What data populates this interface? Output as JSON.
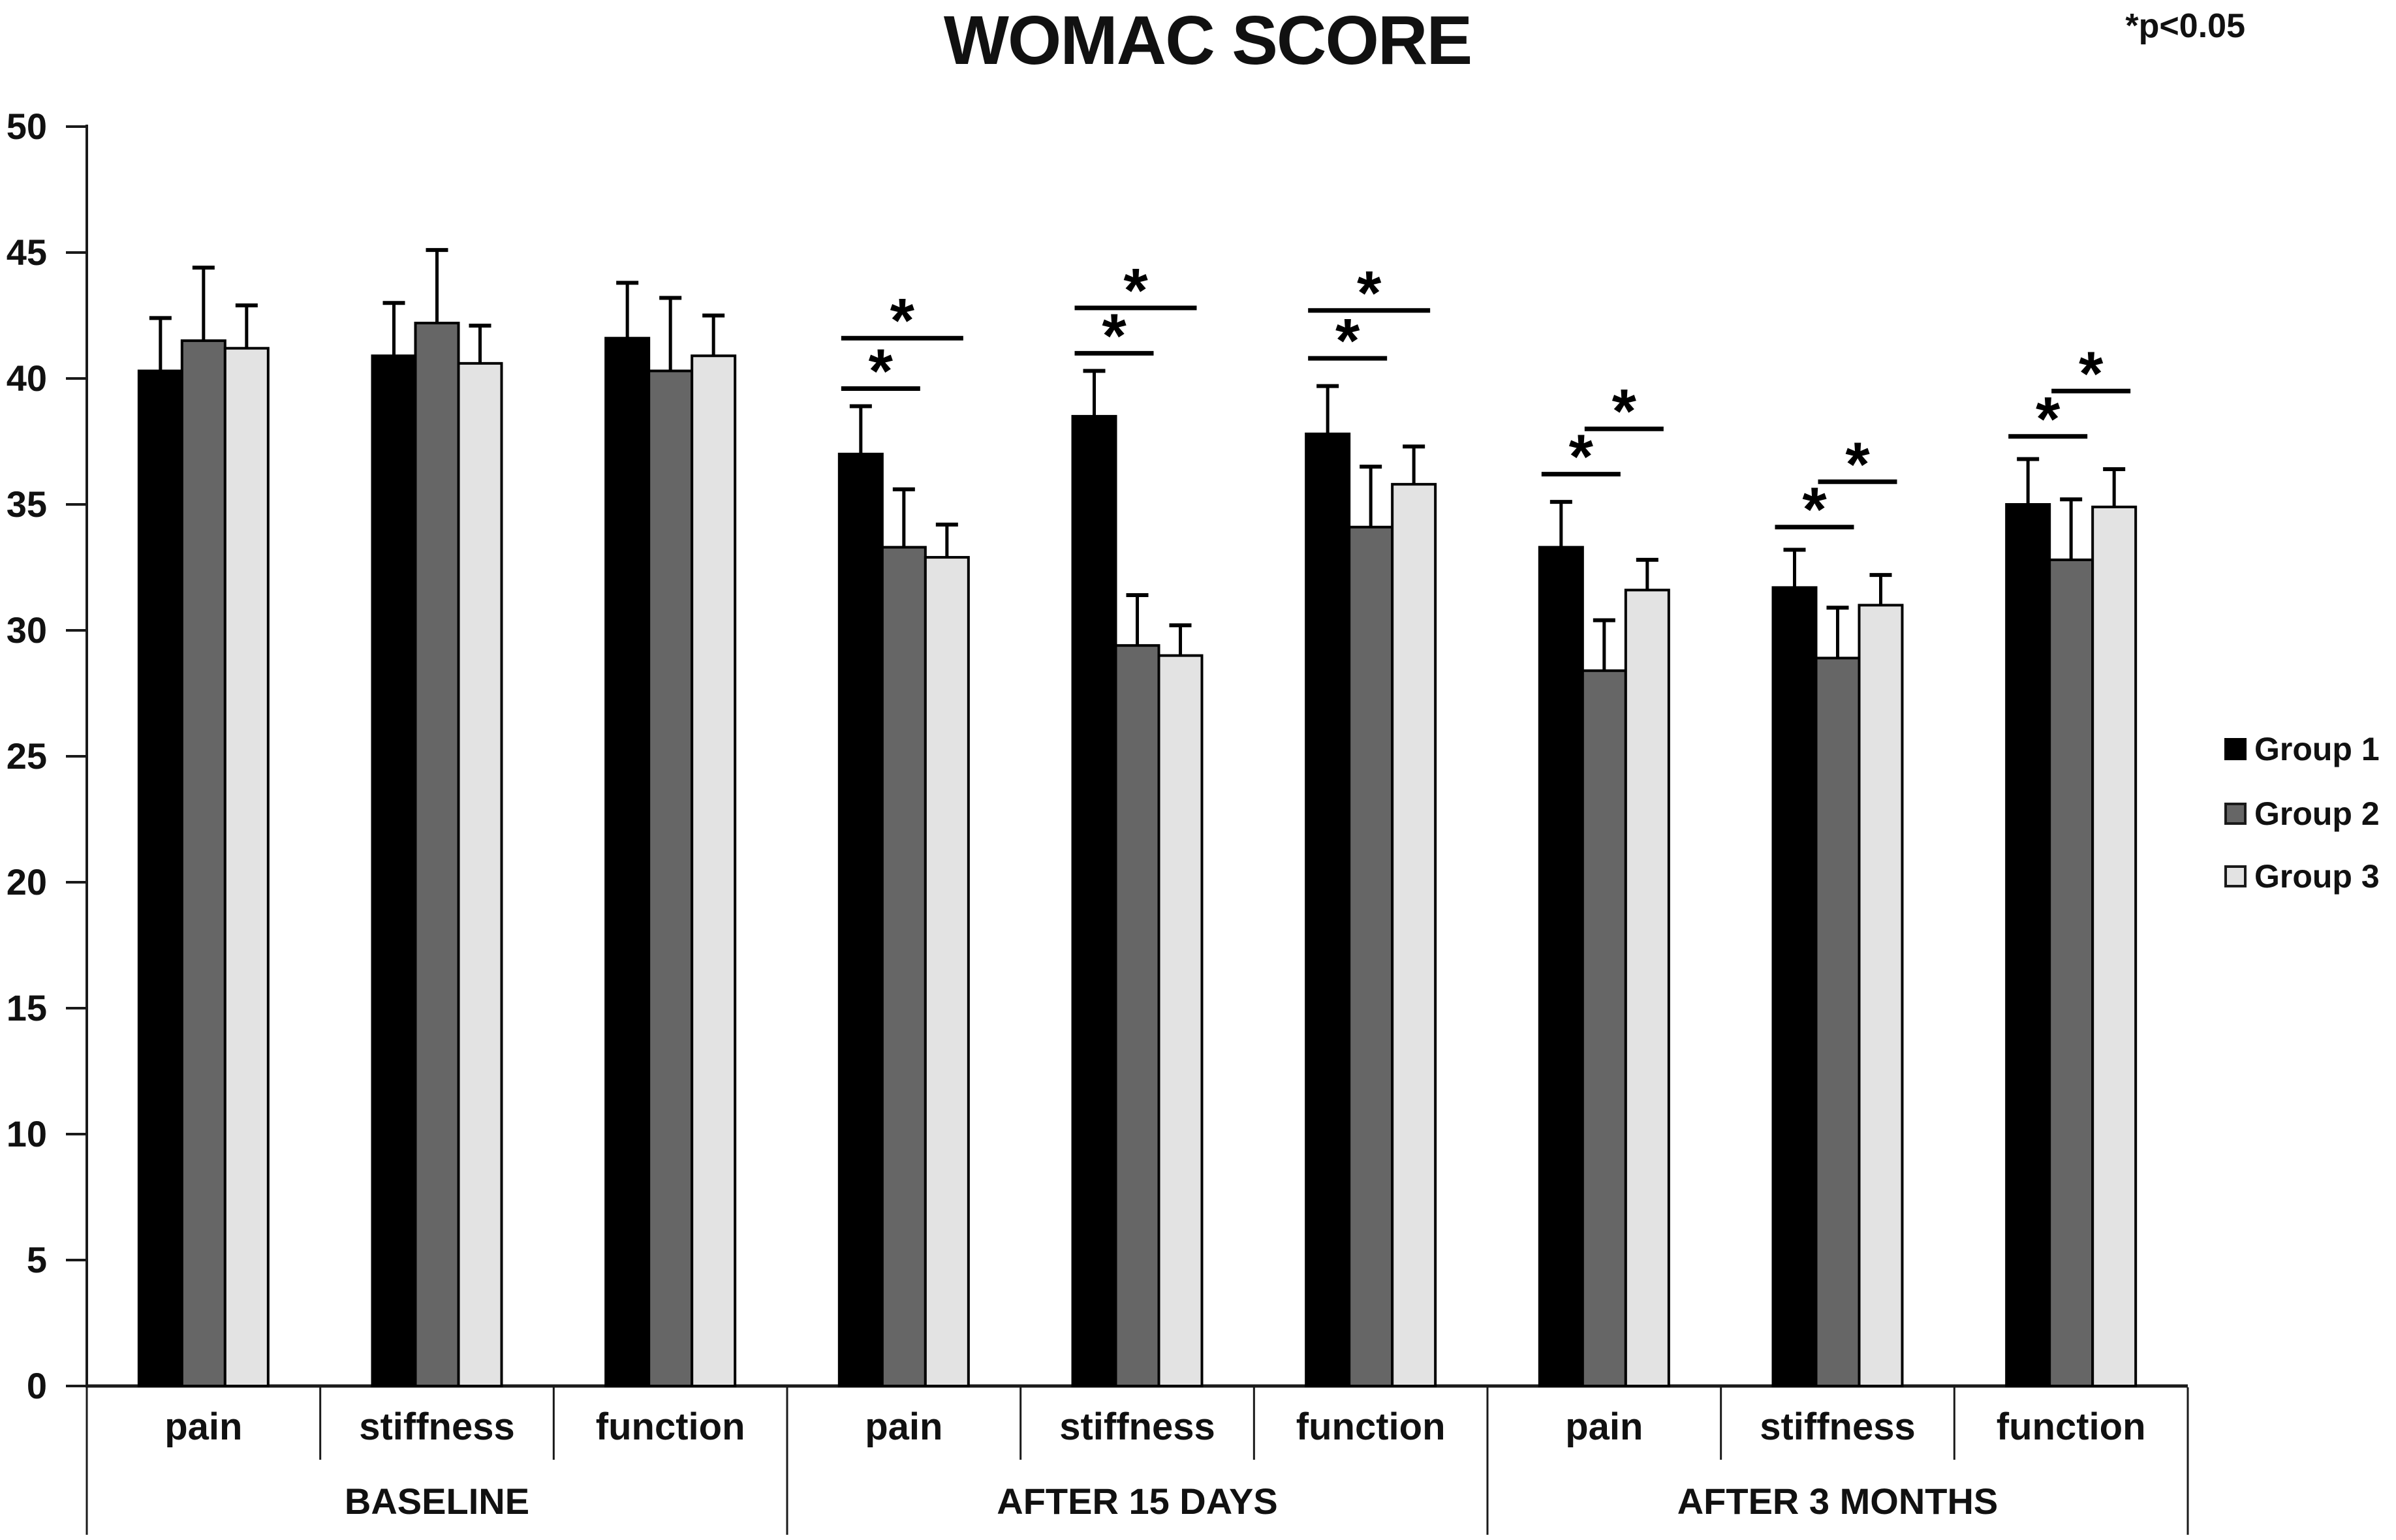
{
  "title": "WOMAC SCORE",
  "significance_note": "*p<0.05",
  "legend": [
    {
      "label": "Group 1",
      "color": "#000000",
      "border": "#000000"
    },
    {
      "label": "Group 2",
      "color": "#666666",
      "border": "#1a1a1a"
    },
    {
      "label": "Group 3",
      "color": "#e3e3e3",
      "border": "#1a1a1a"
    }
  ],
  "colors": {
    "group1": "#000000",
    "group2": "#666666",
    "group3": "#e3e3e3",
    "axis": "#1a1a1a",
    "text": "#111111"
  },
  "chart_data": {
    "type": "bar",
    "title": "WOMAC SCORE",
    "xlabel": "",
    "ylabel": "",
    "ylim": [
      0,
      50
    ],
    "y_ticks": [
      0,
      5,
      10,
      15,
      20,
      25,
      30,
      35,
      40,
      45,
      50
    ],
    "grid": false,
    "legend_position": "right",
    "groups": [
      "Group 1",
      "Group 2",
      "Group 3"
    ],
    "significance_marker": "*",
    "sections": [
      {
        "period": "BASELINE",
        "categories": [
          {
            "name": "pain",
            "values": [
              40.3,
              41.5,
              41.2
            ],
            "errors": [
              2.1,
              2.9,
              1.7
            ],
            "brackets": []
          },
          {
            "name": "stiffness",
            "values": [
              40.9,
              42.2,
              40.6
            ],
            "errors": [
              2.1,
              2.9,
              1.5
            ],
            "brackets": []
          },
          {
            "name": "function",
            "values": [
              41.6,
              40.3,
              40.9
            ],
            "errors": [
              2.2,
              2.9,
              1.6
            ],
            "brackets": []
          }
        ]
      },
      {
        "period": "AFTER 15 DAYS",
        "categories": [
          {
            "name": "pain",
            "values": [
              37.0,
              33.3,
              32.9
            ],
            "errors": [
              1.9,
              2.3,
              1.3
            ],
            "brackets": [
              {
                "from": 0,
                "to": 1,
                "y": 39.6
              },
              {
                "from": 0,
                "to": 2,
                "y": 41.6
              }
            ]
          },
          {
            "name": "stiffness",
            "values": [
              38.5,
              29.4,
              29.0
            ],
            "errors": [
              1.8,
              2.0,
              1.2
            ],
            "brackets": [
              {
                "from": 0,
                "to": 1,
                "y": 41.0
              },
              {
                "from": 0,
                "to": 2,
                "y": 42.8
              }
            ]
          },
          {
            "name": "function",
            "values": [
              37.8,
              34.1,
              35.8
            ],
            "errors": [
              1.9,
              2.4,
              1.5
            ],
            "brackets": [
              {
                "from": 0,
                "to": 1,
                "y": 40.8
              },
              {
                "from": 0,
                "to": 2,
                "y": 42.7
              }
            ]
          }
        ]
      },
      {
        "period": "AFTER 3 MONTHS",
        "categories": [
          {
            "name": "pain",
            "values": [
              33.3,
              28.4,
              31.6
            ],
            "errors": [
              1.8,
              2.0,
              1.2
            ],
            "brackets": [
              {
                "from": 0,
                "to": 1,
                "y": 36.2
              },
              {
                "from": 1,
                "to": 2,
                "y": 38.0
              }
            ]
          },
          {
            "name": "stiffness",
            "values": [
              31.7,
              28.9,
              31.0
            ],
            "errors": [
              1.5,
              2.0,
              1.2
            ],
            "brackets": [
              {
                "from": 0,
                "to": 1,
                "y": 34.1
              },
              {
                "from": 1,
                "to": 2,
                "y": 35.9
              }
            ]
          },
          {
            "name": "function",
            "values": [
              35.0,
              32.8,
              34.9
            ],
            "errors": [
              1.8,
              2.4,
              1.5
            ],
            "brackets": [
              {
                "from": 0,
                "to": 1,
                "y": 37.7
              },
              {
                "from": 1,
                "to": 2,
                "y": 39.5
              }
            ]
          }
        ]
      }
    ]
  }
}
